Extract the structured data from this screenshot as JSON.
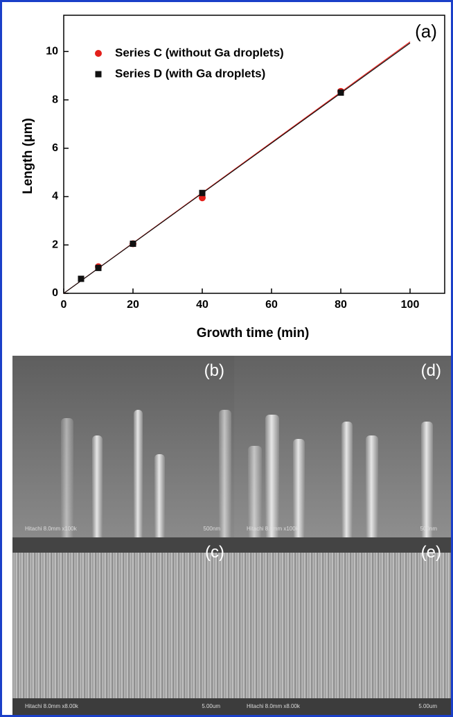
{
  "chart_data": {
    "type": "scatter",
    "annotation": "(a)",
    "x_label": "Growth time (min)",
    "y_label": "Length (μm)",
    "xlim": [
      0,
      110
    ],
    "ylim": [
      0,
      11.5
    ],
    "xticks": [
      0,
      20,
      40,
      60,
      80,
      100
    ],
    "yticks": [
      0,
      2,
      4,
      6,
      8,
      10
    ],
    "legend": "upper left",
    "series": [
      {
        "name": "Series C (without Ga droplets)",
        "color": "#e3201b",
        "marker": "circle",
        "x": [
          10,
          20,
          40,
          80
        ],
        "values": [
          1.1,
          2.05,
          3.95,
          8.35
        ]
      },
      {
        "name": "Series D (with Ga droplets)",
        "color": "#111111",
        "marker": "square",
        "x": [
          5,
          10,
          20,
          40,
          80
        ],
        "values": [
          0.6,
          1.05,
          2.05,
          4.15,
          8.3
        ]
      }
    ],
    "fit_lines": [
      {
        "color": "#e3201b",
        "x": [
          0,
          100
        ],
        "values": [
          0,
          10.4
        ]
      },
      {
        "color": "#111111",
        "x": [
          0,
          100
        ],
        "values": [
          0,
          10.35
        ]
      }
    ]
  },
  "panels": [
    {
      "label": "(b)",
      "info": "Hitachi 8.0mm x100k",
      "scale": "500nm"
    },
    {
      "label": "(d)",
      "info": "Hitachi 8.0mm x100k",
      "scale": "500nm"
    },
    {
      "label": "(c)",
      "info": "Hitachi 8.0mm x8.00k",
      "scale": "5.00um"
    },
    {
      "label": "(e)",
      "info": "Hitachi 8.0mm x8.00k",
      "scale": "5.00um"
    }
  ]
}
